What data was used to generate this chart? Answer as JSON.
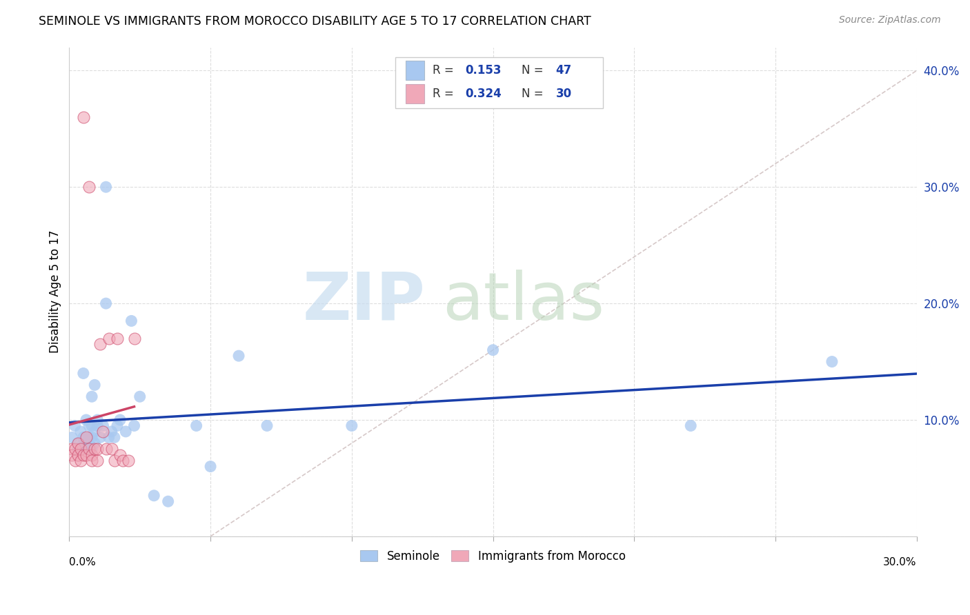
{
  "title": "SEMINOLE VS IMMIGRANTS FROM MOROCCO DISABILITY AGE 5 TO 17 CORRELATION CHART",
  "source": "Source: ZipAtlas.com",
  "ylabel": "Disability Age 5 to 17",
  "legend_label1": "Seminole",
  "legend_label2": "Immigrants from Morocco",
  "R1": 0.153,
  "N1": 47,
  "R2": 0.324,
  "N2": 30,
  "blue_scatter_color": "#a8c8f0",
  "blue_line_color": "#1a3faa",
  "pink_scatter_color": "#f0a8b8",
  "pink_line_color": "#cc4466",
  "diag_color": "#ccbbbb",
  "xlim": [
    0.0,
    0.3
  ],
  "ylim": [
    0.0,
    0.42
  ],
  "yticks": [
    0.0,
    0.1,
    0.2,
    0.3,
    0.4
  ],
  "ytick_labels": [
    "",
    "10.0%",
    "20.0%",
    "30.0%",
    "40.0%"
  ],
  "seminole_x": [
    0.001,
    0.002,
    0.003,
    0.003,
    0.004,
    0.005,
    0.005,
    0.005,
    0.006,
    0.006,
    0.006,
    0.007,
    0.007,
    0.007,
    0.007,
    0.008,
    0.008,
    0.008,
    0.008,
    0.009,
    0.009,
    0.009,
    0.01,
    0.01,
    0.011,
    0.012,
    0.013,
    0.013,
    0.014,
    0.015,
    0.016,
    0.017,
    0.018,
    0.02,
    0.022,
    0.023,
    0.025,
    0.03,
    0.035,
    0.045,
    0.05,
    0.06,
    0.07,
    0.1,
    0.15,
    0.22,
    0.27
  ],
  "seminole_y": [
    0.085,
    0.095,
    0.08,
    0.075,
    0.09,
    0.085,
    0.14,
    0.08,
    0.075,
    0.1,
    0.085,
    0.095,
    0.085,
    0.075,
    0.08,
    0.12,
    0.085,
    0.095,
    0.075,
    0.09,
    0.13,
    0.08,
    0.095,
    0.1,
    0.085,
    0.095,
    0.3,
    0.2,
    0.085,
    0.09,
    0.085,
    0.095,
    0.1,
    0.09,
    0.185,
    0.095,
    0.12,
    0.035,
    0.03,
    0.095,
    0.06,
    0.155,
    0.095,
    0.095,
    0.16,
    0.095,
    0.15
  ],
  "morocco_x": [
    0.001,
    0.001,
    0.002,
    0.002,
    0.003,
    0.003,
    0.004,
    0.004,
    0.005,
    0.005,
    0.006,
    0.006,
    0.007,
    0.007,
    0.008,
    0.008,
    0.009,
    0.01,
    0.01,
    0.011,
    0.012,
    0.013,
    0.014,
    0.015,
    0.016,
    0.017,
    0.018,
    0.019,
    0.021,
    0.023
  ],
  "morocco_y": [
    0.075,
    0.07,
    0.075,
    0.065,
    0.08,
    0.07,
    0.075,
    0.065,
    0.36,
    0.07,
    0.085,
    0.07,
    0.3,
    0.075,
    0.07,
    0.065,
    0.075,
    0.065,
    0.075,
    0.165,
    0.09,
    0.075,
    0.17,
    0.075,
    0.065,
    0.17,
    0.07,
    0.065,
    0.065,
    0.17
  ]
}
